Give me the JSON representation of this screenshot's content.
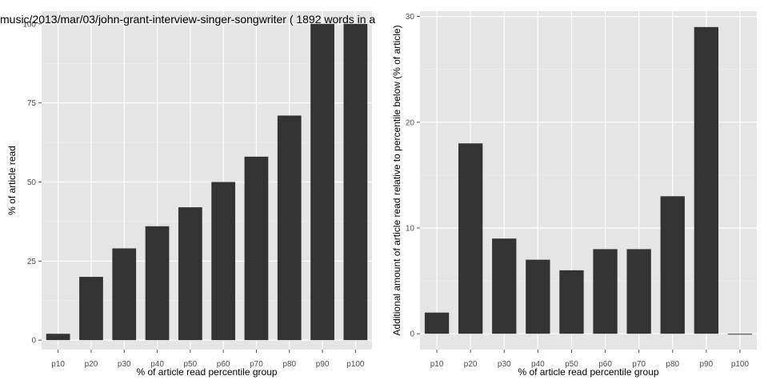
{
  "chart_data": [
    {
      "type": "bar",
      "title": "music/2013/mar/03/john-grant-interview-singer-songwriter ( 1892 words in a",
      "xlabel": "% of article read percentile group",
      "ylabel": "% of article read",
      "categories": [
        "p10",
        "p20",
        "p30",
        "p40",
        "p50",
        "p60",
        "p70",
        "p80",
        "p90",
        "p100"
      ],
      "values": [
        2,
        20,
        29,
        36,
        42,
        50,
        58,
        71,
        100,
        100
      ],
      "ylim": [
        -3,
        104
      ],
      "yticks": [
        0,
        25,
        50,
        75,
        100
      ],
      "bar_color": "#333333",
      "panel_color": "#e5e5e5",
      "grid": true
    },
    {
      "type": "bar",
      "title": "",
      "xlabel": "% of article read percentile group",
      "ylabel": "Additional amount of article read relative to percentile below (% of article)",
      "categories": [
        "p10",
        "p20",
        "p30",
        "p40",
        "p50",
        "p60",
        "p70",
        "p80",
        "p90",
        "p100"
      ],
      "values": [
        2,
        18,
        9,
        7,
        6,
        8,
        8,
        13,
        29,
        0
      ],
      "ylim": [
        -1.5,
        30.5
      ],
      "yticks": [
        0,
        10,
        20,
        30
      ],
      "bar_color": "#333333",
      "panel_color": "#e5e5e5",
      "grid": true
    }
  ]
}
